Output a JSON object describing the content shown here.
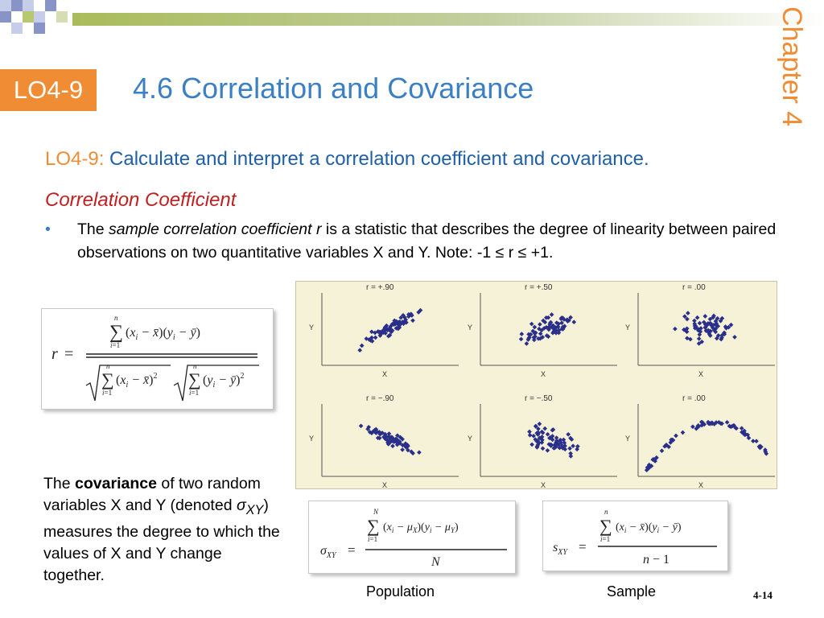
{
  "header": {
    "chapter_label": "Chapter 4",
    "lo_badge": "LO4-9",
    "title": "4.6  Correlation and Covariance"
  },
  "objective": {
    "code": "LO4-9:",
    "text": " Calculate and interpret a correlation coefficient and covariance."
  },
  "section": {
    "heading": "Correlation Coefficient",
    "bullet_pre": "The ",
    "bullet_term": "sample correlation coefficient r",
    "bullet_post": " is a statistic that describes the degree of linearity between paired observations on two quantitative variables X and Y.  Note: -1 ≤ r ≤ +1."
  },
  "scatter_plots": [
    {
      "label": "r = +.90"
    },
    {
      "label": "r = +.50"
    },
    {
      "label": "r = .00"
    },
    {
      "label": "r = −.90"
    },
    {
      "label": "r = −.50"
    },
    {
      "label": "r = .00"
    }
  ],
  "axes": {
    "x": "X",
    "y": "Y"
  },
  "covariance": {
    "pre": "The ",
    "term": "covariance",
    "post_a": " of two random variables X and Y (denoted ",
    "symbol": "σ",
    "subscript": "XY",
    "post_b": ") measures the degree to which the values of X and Y change together."
  },
  "captions": {
    "population": "Population",
    "sample": "Sample"
  },
  "page_number": "4-14",
  "colors": {
    "accent_orange": "#f08c34",
    "title_blue": "#3b7fc4",
    "heading_red": "#c02020",
    "point_navy": "#2a2f8a"
  }
}
